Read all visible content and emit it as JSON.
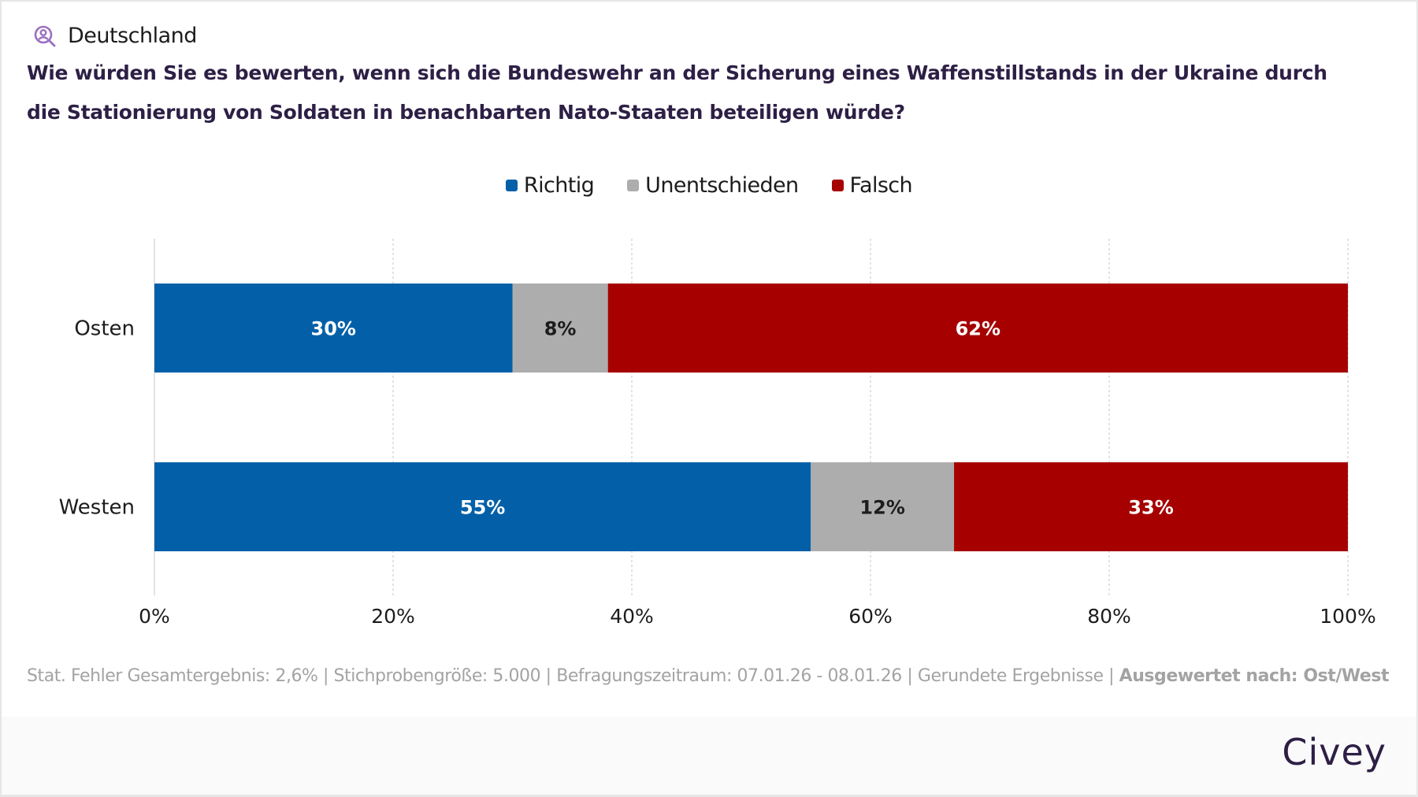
{
  "header": {
    "region_icon": "user-search-icon",
    "region": "Deutschland",
    "title": "Wie würden Sie es bewerten, wenn sich die Bundeswehr an der Sicherung eines Waffenstillstands in der Ukraine durch die Stationierung von Soldaten in benachbarten Nato-Staaten beteiligen würde?"
  },
  "colors": {
    "richtig": "#0360a8",
    "unentschieden": "#adadad",
    "falsch": "#a60000",
    "brand": "#2d1f45",
    "region_icon": "#9b6fc0"
  },
  "chart_data": {
    "type": "bar",
    "orientation": "horizontal",
    "stacked": true,
    "title": "Wie würden Sie es bewerten, wenn sich die Bundeswehr an der Sicherung eines Waffenstillstands in der Ukraine durch die Stationierung von Soldaten in benachbarten Nato-Staaten beteiligen würde?",
    "categories": [
      "Osten",
      "Westen"
    ],
    "series": [
      {
        "name": "Richtig",
        "color": "#0360a8",
        "label_color": "#ffffff",
        "values": [
          30,
          55
        ]
      },
      {
        "name": "Unentschieden",
        "color": "#adadad",
        "label_color": "#1c1c1c",
        "values": [
          8,
          12
        ]
      },
      {
        "name": "Falsch",
        "color": "#a60000",
        "label_color": "#ffffff",
        "values": [
          62,
          33
        ]
      }
    ],
    "value_suffix": "%",
    "xlim": [
      0,
      100
    ],
    "x_ticks": [
      0,
      20,
      40,
      60,
      80,
      100
    ],
    "x_tick_labels": [
      "0%",
      "20%",
      "40%",
      "60%",
      "80%",
      "100%"
    ],
    "xlabel": "",
    "ylabel": "",
    "grid": "vertical dotted",
    "legend_position": "top-center"
  },
  "footnote": {
    "text": "Stat. Fehler Gesamtergebnis: 2,6% | Stichprobengröße: 5.000 | Befragungszeitraum: 07.01.26 - 08.01.26 | Gerundete Ergebnisse | ",
    "bold": "Ausgewertet nach: Ost/West"
  },
  "footer": {
    "logo": "Civey"
  }
}
